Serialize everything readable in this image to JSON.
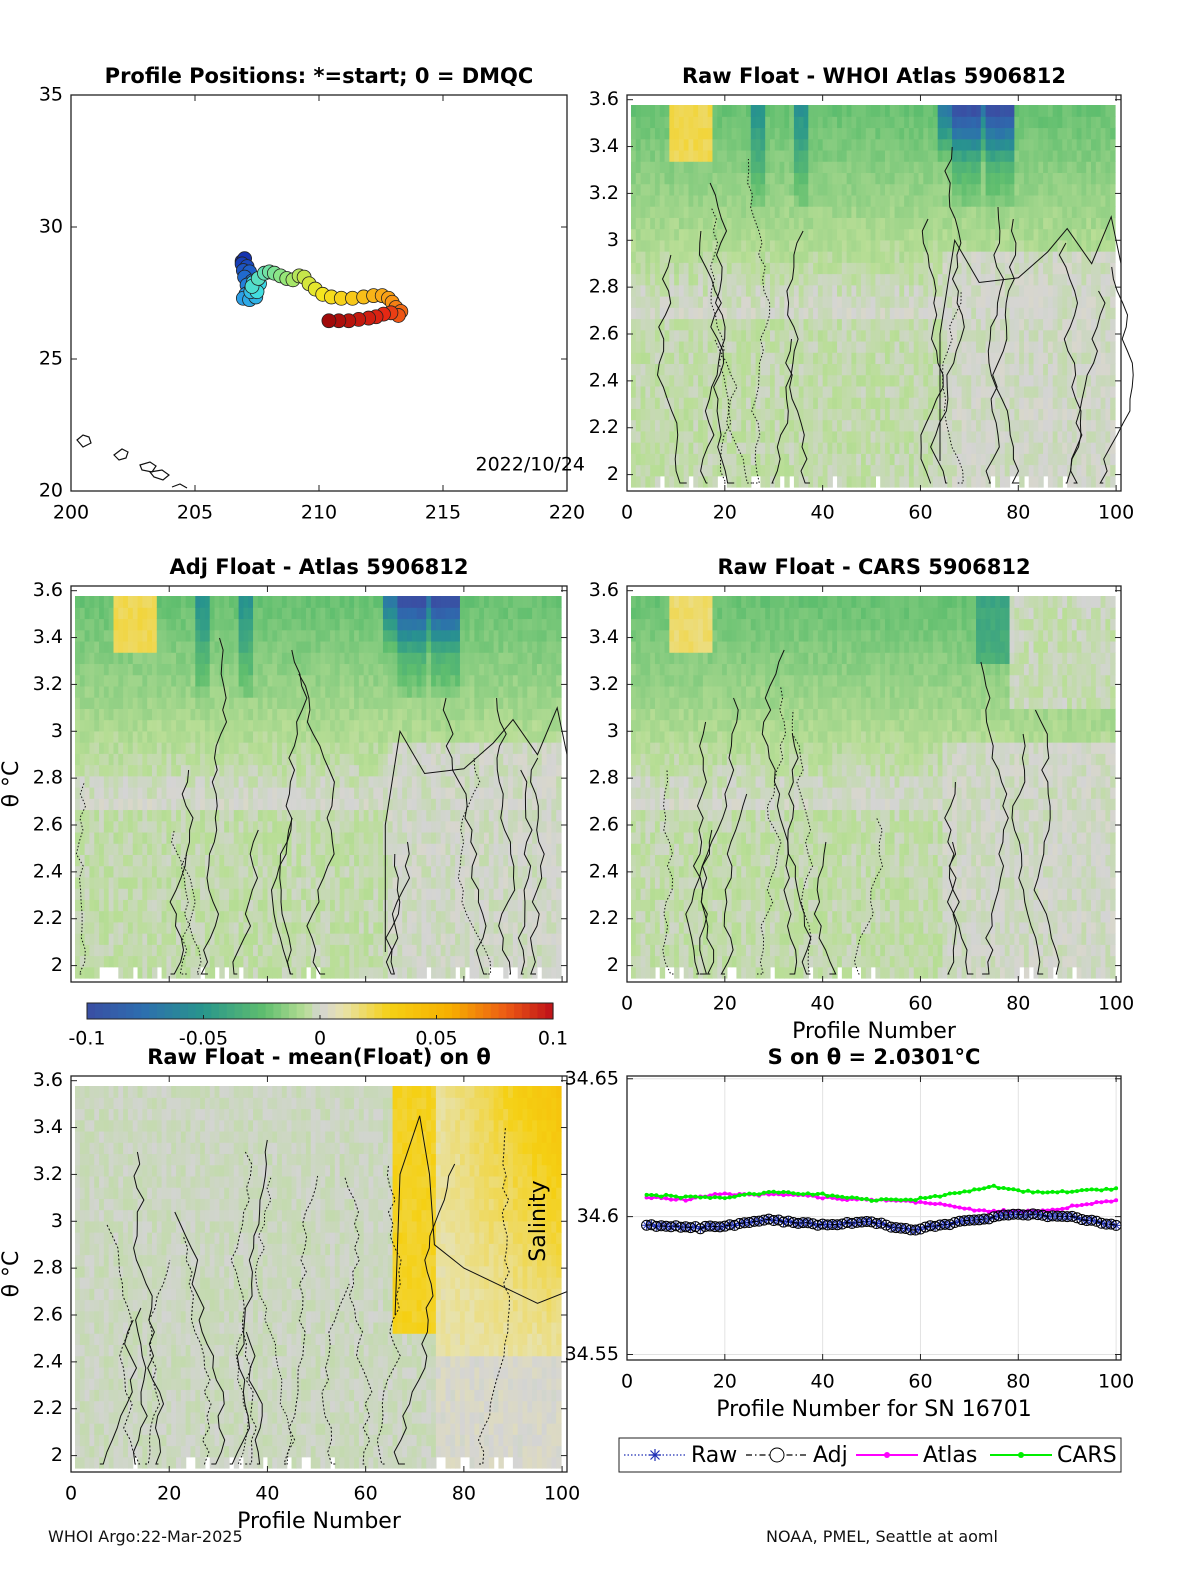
{
  "colors": {
    "accent_low": "#3a4ea3",
    "accent_high": "#c4121c",
    "neutral_grey": "#d4d4d4",
    "series_raw": "#1f2fb5",
    "series_adj": "#000000",
    "series_atlas": "#ff00ff",
    "series_cars": "#00ee00"
  },
  "footer": {
    "left": "WHOI Argo:22-Mar-2025",
    "right": "NOAA, PMEL, Seattle at aoml"
  },
  "chart_data": [
    {
      "id": "map",
      "type": "scatter",
      "title": "Profile Positions: *=start; 0 = DMQC",
      "xlim": [
        200,
        220
      ],
      "ylim": [
        20,
        35
      ],
      "xticks": [
        "200",
        "205",
        "210",
        "215",
        "220"
      ],
      "yticks": [
        "20",
        "25",
        "30",
        "35"
      ],
      "annotation": "2022/10/24",
      "track": [
        [
          206.9,
          28.7
        ],
        [
          207.0,
          28.8
        ],
        [
          206.9,
          28.6
        ],
        [
          207.1,
          28.5
        ],
        [
          206.95,
          28.35
        ],
        [
          207.2,
          28.3
        ],
        [
          207.0,
          28.1
        ],
        [
          207.3,
          27.95
        ],
        [
          207.1,
          27.8
        ],
        [
          207.25,
          27.6
        ],
        [
          207.05,
          27.45
        ],
        [
          206.95,
          27.3
        ],
        [
          207.2,
          27.25
        ],
        [
          207.45,
          27.35
        ],
        [
          207.25,
          27.55
        ],
        [
          207.5,
          27.7
        ],
        [
          207.35,
          27.9
        ],
        [
          207.6,
          27.85
        ],
        [
          207.5,
          27.55
        ],
        [
          207.3,
          27.75
        ],
        [
          207.55,
          28.05
        ],
        [
          207.8,
          28.25
        ],
        [
          208.0,
          28.3
        ],
        [
          208.2,
          28.25
        ],
        [
          208.45,
          28.15
        ],
        [
          208.7,
          28.05
        ],
        [
          208.95,
          28.0
        ],
        [
          209.2,
          28.15
        ],
        [
          209.4,
          28.1
        ],
        [
          209.6,
          27.85
        ],
        [
          209.85,
          27.65
        ],
        [
          210.15,
          27.45
        ],
        [
          210.5,
          27.35
        ],
        [
          210.9,
          27.3
        ],
        [
          211.35,
          27.3
        ],
        [
          211.8,
          27.35
        ],
        [
          212.2,
          27.4
        ],
        [
          212.55,
          27.4
        ],
        [
          212.8,
          27.3
        ],
        [
          212.95,
          27.15
        ],
        [
          213.1,
          26.95
        ],
        [
          213.3,
          26.8
        ],
        [
          213.2,
          26.65
        ],
        [
          212.9,
          26.75
        ],
        [
          212.6,
          26.7
        ],
        [
          212.3,
          26.6
        ],
        [
          212.0,
          26.55
        ],
        [
          211.6,
          26.5
        ],
        [
          211.2,
          26.45
        ],
        [
          210.8,
          26.45
        ],
        [
          210.4,
          26.45
        ]
      ]
    },
    {
      "id": "raw-atlas",
      "type": "heatmap",
      "title": "Raw Float - WHOI Atlas  5906812",
      "xlim": [
        0,
        101
      ],
      "ylim": [
        1.93,
        3.62
      ],
      "xticks": [
        "0",
        "20",
        "40",
        "60",
        "80",
        "100"
      ],
      "yticks": [
        "2",
        "2.2",
        "2.4",
        "2.6",
        "2.8",
        "3",
        "3.2",
        "3.4",
        "3.6"
      ]
    },
    {
      "id": "adj-atlas",
      "type": "heatmap",
      "title": "Adj Float - Atlas  5906812",
      "ylabel": "θ °C",
      "xlim": [
        0,
        101
      ],
      "ylim": [
        1.93,
        3.62
      ],
      "yticks": [
        "2",
        "2.2",
        "2.4",
        "2.6",
        "2.8",
        "3",
        "3.2",
        "3.4",
        "3.6"
      ],
      "colorbar": {
        "range": [
          -0.1,
          0.1
        ],
        "ticks": [
          "-0.1",
          "-0.05",
          "0",
          "0.05",
          "0.1"
        ]
      }
    },
    {
      "id": "raw-cars",
      "type": "heatmap",
      "title": "Raw Float - CARS  5906812",
      "xlabel": "Profile Number",
      "xlim": [
        0,
        101
      ],
      "ylim": [
        1.93,
        3.62
      ],
      "xticks": [
        "0",
        "20",
        "40",
        "60",
        "80",
        "100"
      ],
      "yticks": [
        "2",
        "2.2",
        "2.4",
        "2.6",
        "2.8",
        "3",
        "3.2",
        "3.4",
        "3.6"
      ]
    },
    {
      "id": "raw-mean",
      "type": "heatmap",
      "title": "Raw Float - mean(Float) on θ",
      "xlabel": "Profile Number",
      "ylabel": "θ °C",
      "annotation": "Salinity",
      "xlim": [
        0,
        101
      ],
      "ylim": [
        1.93,
        3.62
      ],
      "xticks": [
        "0",
        "20",
        "40",
        "60",
        "80",
        "100"
      ],
      "yticks": [
        "2",
        "2.2",
        "2.4",
        "2.6",
        "2.8",
        "3",
        "3.2",
        "3.4",
        "3.6"
      ]
    },
    {
      "id": "salinity-series",
      "type": "line",
      "title": "S on θ = 2.0301°C",
      "xlabel": "Profile Number for SN 16701",
      "xlim": [
        0,
        101
      ],
      "ylim": [
        34.548,
        34.651
      ],
      "xticks": [
        "0",
        "20",
        "40",
        "60",
        "80",
        "100"
      ],
      "yticks": [
        "34.55",
        "34.6",
        "34.65"
      ],
      "grid": true,
      "legend_position": "bottom",
      "legend": [
        "Raw",
        "Adj",
        "Atlas",
        "CARS"
      ],
      "x": [
        4,
        100
      ],
      "series": [
        {
          "name": "Raw",
          "anchors": [
            [
              4,
              34.597
            ],
            [
              15,
              34.596
            ],
            [
              22,
              34.597
            ],
            [
              28,
              34.599
            ],
            [
              40,
              34.597
            ],
            [
              50,
              34.598
            ],
            [
              58,
              34.595
            ],
            [
              64,
              34.597
            ],
            [
              72,
              34.599
            ],
            [
              80,
              34.601
            ],
            [
              90,
              34.6
            ],
            [
              100,
              34.597
            ]
          ]
        },
        {
          "name": "Adj",
          "anchors": [
            [
              4,
              34.597
            ],
            [
              15,
              34.596
            ],
            [
              22,
              34.597
            ],
            [
              28,
              34.599
            ],
            [
              40,
              34.597
            ],
            [
              50,
              34.598
            ],
            [
              58,
              34.595
            ],
            [
              64,
              34.597
            ],
            [
              72,
              34.599
            ],
            [
              80,
              34.601
            ],
            [
              90,
              34.6
            ],
            [
              100,
              34.597
            ]
          ]
        },
        {
          "name": "Atlas",
          "anchors": [
            [
              4,
              34.607
            ],
            [
              12,
              34.606
            ],
            [
              18,
              34.608
            ],
            [
              25,
              34.608
            ],
            [
              35,
              34.608
            ],
            [
              45,
              34.606
            ],
            [
              55,
              34.606
            ],
            [
              62,
              34.605
            ],
            [
              68,
              34.603
            ],
            [
              75,
              34.602
            ],
            [
              85,
              34.602
            ],
            [
              92,
              34.604
            ],
            [
              100,
              34.606
            ]
          ]
        },
        {
          "name": "CARS",
          "anchors": [
            [
              4,
              34.608
            ],
            [
              12,
              34.607
            ],
            [
              20,
              34.607
            ],
            [
              30,
              34.609
            ],
            [
              40,
              34.608
            ],
            [
              50,
              34.606
            ],
            [
              58,
              34.606
            ],
            [
              66,
              34.608
            ],
            [
              75,
              34.611
            ],
            [
              82,
              34.609
            ],
            [
              90,
              34.609
            ],
            [
              100,
              34.61
            ]
          ]
        }
      ]
    }
  ]
}
